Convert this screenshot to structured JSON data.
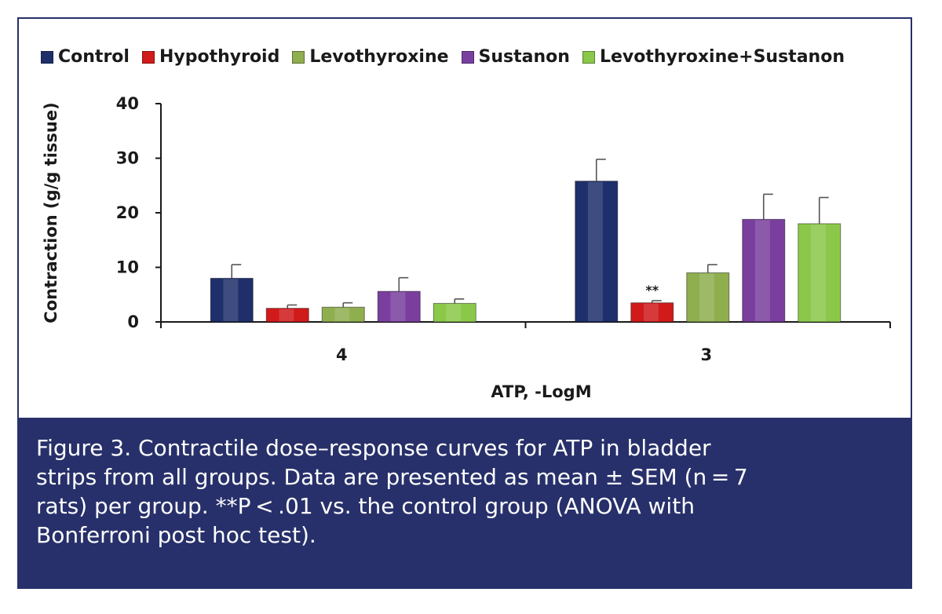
{
  "chart_data": {
    "type": "bar",
    "categories": [
      "4",
      "3"
    ],
    "xlabel": "ATP, -LogM",
    "ylabel": "Contraction (g/g tissue)",
    "ylim": [
      0,
      40
    ],
    "yticks": [
      0,
      10,
      20,
      30,
      40
    ],
    "legend_position": "top",
    "series": [
      {
        "name": "Control",
        "values": [
          8.0,
          25.8
        ],
        "errors": [
          2.5,
          4.0
        ],
        "color": "#1f2f6b"
      },
      {
        "name": "Hypothyroid",
        "values": [
          2.5,
          3.5
        ],
        "errors": [
          0.6,
          0.4
        ],
        "color": "#d11a1a"
      },
      {
        "name": "Levothyroxine",
        "values": [
          2.7,
          9.0
        ],
        "errors": [
          0.8,
          1.5
        ],
        "color": "#8fae4e"
      },
      {
        "name": "Sustanon",
        "values": [
          5.6,
          18.8
        ],
        "errors": [
          2.5,
          4.6
        ],
        "color": "#7a3f9e"
      },
      {
        "name": "Levothyroxine+Sustanon",
        "values": [
          3.4,
          18.0
        ],
        "errors": [
          0.8,
          4.8
        ],
        "color": "#8bc84a"
      }
    ],
    "annotations": [
      {
        "text": "**",
        "series": "Hypothyroid",
        "category": "3"
      }
    ]
  },
  "caption": {
    "lines": [
      "Figure 3.  Contractile dose–response curves for ATP in bladder",
      "strips from all groups. Data are presented as mean ± SEM (n = 7",
      "rats) per group. **P < .01 vs. the control group (ANOVA with",
      "Bonferroni post hoc test)."
    ]
  }
}
